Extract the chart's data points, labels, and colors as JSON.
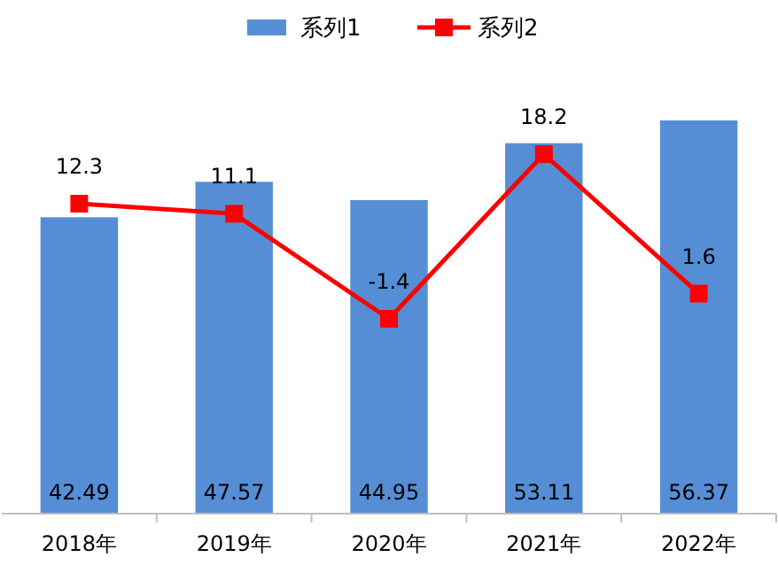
{
  "chart_data": {
    "type": "bar",
    "categories": [
      "2018年",
      "2019年",
      "2020年",
      "2021年",
      "2022年"
    ],
    "series": [
      {
        "name": "系列1",
        "color": "#558ed5",
        "values": [
          42.49,
          47.57,
          44.95,
          53.11,
          56.37
        ]
      },
      {
        "name": "系列2",
        "type": "line",
        "axis": "y2",
        "color": "#ff0000",
        "marker": "square",
        "values": [
          12.3,
          11.1,
          -1.4,
          18.2,
          1.6
        ]
      }
    ],
    "tick_labels": "x",
    "data_labels": true,
    "legend": "top"
  }
}
